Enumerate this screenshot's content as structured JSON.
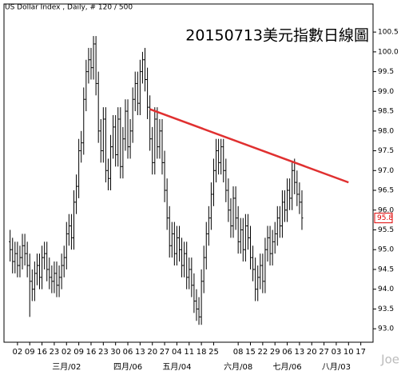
{
  "chart_data": {
    "type": "ohlc",
    "header": "US Dollar Index , Daily, # 120 / 500",
    "title": "20150713美元指數日線圖",
    "watermark": "Joe",
    "color": "#000000",
    "open": [
      95.2,
      95.0,
      94.7,
      94.9,
      94.6,
      94.8,
      95.1,
      94.9,
      94.6,
      94.2,
      94.0,
      94.4,
      94.6,
      94.3,
      94.8,
      94.9,
      94.5,
      94.3,
      94.2,
      94.4,
      94.1,
      94.3,
      94.6,
      94.8,
      95.4,
      95.6,
      95.3,
      96.2,
      96.6,
      97.5,
      97.7,
      98.8,
      99.5,
      99.8,
      99.6,
      100.2,
      99.2,
      98.0,
      97.5,
      98.3,
      97.0,
      96.8,
      97.6,
      98.1,
      97.4,
      98.3,
      97.1,
      97.8,
      98.5,
      97.6,
      98.0,
      98.8,
      99.2,
      98.7,
      99.5,
      99.8,
      99.3,
      98.6,
      97.8,
      97.2,
      98.3,
      97.6,
      98.0,
      97.2,
      96.5,
      95.8,
      95.1,
      95.4,
      94.9,
      95.3,
      95.0,
      94.6,
      94.9,
      94.3,
      94.5,
      94.1,
      93.7,
      93.5,
      93.3,
      94.2,
      94.8,
      95.4,
      95.8,
      96.4,
      97.0,
      97.5,
      97.2,
      97.6,
      97.0,
      96.5,
      96.0,
      95.6,
      96.3,
      95.8,
      95.2,
      95.5,
      95.0,
      95.6,
      95.3,
      94.8,
      94.5,
      94.0,
      94.3,
      94.6,
      94.2,
      95.0,
      95.3,
      94.9,
      95.2,
      95.4,
      95.8,
      95.6,
      96.2,
      96.0,
      96.5,
      96.3,
      97.0,
      96.7,
      96.4,
      96.2
    ],
    "high": [
      95.5,
      95.3,
      95.2,
      95.2,
      95.1,
      95.4,
      95.4,
      95.2,
      94.9,
      94.5,
      94.7,
      94.9,
      94.9,
      95.1,
      95.2,
      95.2,
      94.8,
      94.6,
      94.7,
      94.7,
      94.6,
      94.9,
      95.1,
      95.7,
      95.9,
      95.9,
      96.5,
      96.9,
      97.8,
      98.0,
      99.1,
      99.8,
      100.1,
      100.1,
      100.4,
      100.4,
      99.5,
      98.3,
      98.6,
      98.6,
      97.3,
      97.9,
      98.4,
      98.4,
      98.6,
      98.6,
      98.1,
      98.8,
      98.8,
      98.3,
      99.1,
      99.5,
      99.5,
      99.8,
      100.0,
      100.1,
      99.6,
      98.9,
      98.1,
      98.6,
      98.6,
      98.3,
      98.3,
      97.5,
      96.8,
      96.1,
      95.7,
      95.7,
      95.6,
      95.6,
      95.3,
      95.2,
      95.2,
      94.8,
      94.8,
      94.4,
      94.0,
      93.8,
      94.5,
      95.1,
      95.7,
      96.1,
      96.7,
      97.3,
      97.8,
      97.8,
      97.8,
      97.8,
      97.3,
      96.8,
      96.3,
      96.6,
      96.6,
      96.1,
      95.8,
      95.8,
      95.9,
      95.9,
      95.6,
      95.1,
      94.8,
      94.6,
      94.9,
      94.9,
      95.3,
      95.6,
      95.6,
      95.5,
      95.7,
      96.1,
      96.1,
      96.5,
      96.5,
      96.8,
      96.8,
      97.2,
      97.3,
      97.0,
      96.7,
      96.5
    ],
    "low": [
      94.7,
      94.4,
      94.4,
      94.3,
      94.3,
      94.5,
      94.6,
      94.3,
      93.3,
      93.7,
      93.7,
      94.1,
      94.0,
      94.0,
      94.5,
      94.2,
      94.0,
      93.9,
      93.9,
      93.8,
      93.8,
      94.0,
      94.3,
      94.5,
      95.1,
      95.0,
      95.0,
      95.9,
      96.3,
      97.2,
      97.4,
      98.5,
      99.2,
      99.3,
      99.3,
      98.9,
      97.7,
      97.2,
      97.2,
      96.7,
      96.5,
      96.5,
      97.3,
      97.1,
      97.1,
      96.8,
      96.8,
      97.5,
      97.3,
      97.3,
      97.7,
      98.5,
      98.4,
      98.4,
      99.2,
      99.0,
      98.3,
      97.5,
      96.9,
      96.9,
      97.3,
      97.3,
      96.9,
      96.2,
      95.5,
      94.8,
      94.8,
      94.6,
      94.6,
      94.7,
      94.3,
      94.3,
      94.0,
      94.0,
      93.8,
      93.4,
      93.2,
      93.1,
      93.1,
      93.9,
      94.5,
      95.1,
      95.5,
      96.1,
      96.7,
      96.9,
      96.9,
      96.7,
      96.2,
      95.7,
      95.3,
      95.3,
      95.5,
      94.9,
      94.9,
      94.7,
      94.7,
      95.0,
      94.5,
      94.2,
      93.7,
      93.7,
      94.0,
      93.9,
      93.9,
      94.7,
      94.6,
      94.6,
      94.9,
      95.1,
      95.3,
      95.3,
      95.7,
      95.7,
      96.0,
      96.0,
      96.4,
      96.1,
      95.9,
      95.5
    ],
    "close": [
      95.0,
      94.7,
      94.9,
      94.6,
      94.8,
      95.1,
      94.9,
      94.6,
      94.2,
      94.0,
      94.4,
      94.6,
      94.3,
      94.8,
      94.9,
      94.5,
      94.3,
      94.2,
      94.4,
      94.1,
      94.3,
      94.6,
      94.8,
      95.4,
      95.6,
      95.3,
      96.2,
      96.6,
      97.5,
      97.7,
      98.8,
      99.5,
      99.8,
      99.6,
      100.2,
      99.2,
      98.0,
      97.5,
      98.3,
      97.0,
      96.8,
      97.6,
      98.1,
      97.4,
      98.3,
      97.1,
      97.8,
      98.5,
      97.6,
      98.0,
      98.8,
      99.2,
      98.7,
      99.5,
      99.8,
      99.3,
      98.6,
      97.8,
      97.2,
      98.3,
      97.6,
      98.0,
      97.2,
      96.5,
      95.8,
      95.1,
      95.4,
      94.9,
      95.3,
      95.0,
      94.6,
      94.9,
      94.3,
      94.5,
      94.1,
      93.7,
      93.5,
      93.3,
      94.2,
      94.8,
      95.4,
      95.8,
      96.4,
      97.0,
      97.5,
      97.2,
      97.6,
      97.0,
      96.5,
      96.0,
      95.6,
      96.3,
      95.8,
      95.2,
      95.5,
      95.0,
      95.6,
      95.3,
      94.8,
      94.5,
      94.0,
      94.3,
      94.6,
      94.2,
      95.0,
      95.3,
      94.9,
      95.2,
      95.4,
      95.8,
      95.6,
      96.2,
      96.0,
      96.5,
      96.3,
      97.0,
      96.7,
      96.4,
      96.2,
      95.8
    ],
    "xlim": [
      -2.5,
      148
    ],
    "xticks": [
      {
        "value": 3,
        "label": "02"
      },
      {
        "value": 8,
        "label": "09"
      },
      {
        "value": 13,
        "label": "16"
      },
      {
        "value": 18,
        "label": "23"
      },
      {
        "value": 23,
        "label": "02"
      },
      {
        "value": 28,
        "label": "09"
      },
      {
        "value": 33,
        "label": "16"
      },
      {
        "value": 38,
        "label": "23"
      },
      {
        "value": 43,
        "label": "30"
      },
      {
        "value": 48,
        "label": "06"
      },
      {
        "value": 53,
        "label": "13"
      },
      {
        "value": 58,
        "label": "20"
      },
      {
        "value": 63,
        "label": "27"
      },
      {
        "value": 68,
        "label": "04"
      },
      {
        "value": 73,
        "label": "11"
      },
      {
        "value": 78,
        "label": "18"
      },
      {
        "value": 83,
        "label": "25"
      },
      {
        "value": 93,
        "label": "08"
      },
      {
        "value": 98,
        "label": "15"
      },
      {
        "value": 103,
        "label": "22"
      },
      {
        "value": 108,
        "label": "29"
      },
      {
        "value": 113,
        "label": "06"
      },
      {
        "value": 118,
        "label": "13"
      },
      {
        "value": 123,
        "label": "20"
      },
      {
        "value": 128,
        "label": "27"
      },
      {
        "value": 133,
        "label": "03"
      },
      {
        "value": 138,
        "label": "10"
      },
      {
        "value": 143,
        "label": "17"
      }
    ],
    "month_labels": [
      {
        "value": 23,
        "label": "三月/02"
      },
      {
        "value": 48,
        "label": "四月/06"
      },
      {
        "value": 68,
        "label": "五月/04"
      },
      {
        "value": 93,
        "label": "六月/08"
      },
      {
        "value": 113,
        "label": "七月/06"
      },
      {
        "value": 133,
        "label": "八月/03"
      }
    ],
    "ylim": [
      92.66,
      101.21
    ],
    "yticks": [
      {
        "value": 93,
        "label": "93.0"
      },
      93.5,
      {
        "value": 94,
        "label": "94.0"
      },
      94.5,
      {
        "value": 95,
        "label": "95.0"
      },
      95.5,
      {
        "value": 96,
        "label": "96.0"
      },
      96.5,
      {
        "value": 97,
        "label": "97.0"
      },
      97.5,
      {
        "value": 98,
        "label": "98.0"
      },
      98.5,
      {
        "value": 99,
        "label": "99.0"
      },
      99.5,
      {
        "value": 100,
        "label": "100.0"
      },
      100.5
    ],
    "last_price": {
      "value": 95.8,
      "label": "95.8",
      "color": "#e00000"
    },
    "trendline": {
      "color": "#e03030",
      "x": [
        57,
        138
      ],
      "y": [
        98.55,
        96.7
      ]
    }
  }
}
